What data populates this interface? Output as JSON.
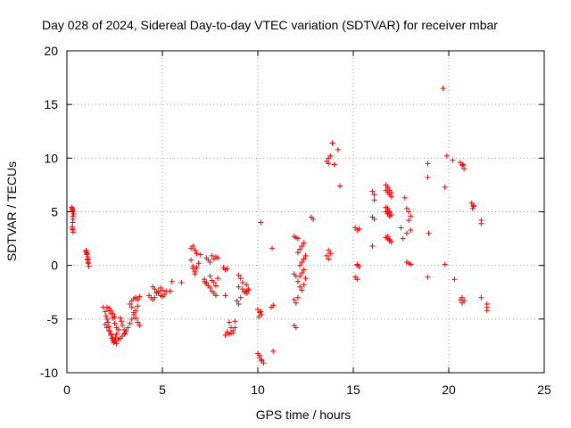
{
  "chart_data": {
    "type": "scatter",
    "title": "Day 028 of 2024, Sidereal Day-to-day VTEC variation (SDTVAR) for receiver mbar",
    "xlabel": "GPS time / hours",
    "ylabel": "SDTVAR / TECUs",
    "xlim": [
      0,
      25
    ],
    "ylim": [
      -10,
      20
    ],
    "xticks": [
      0,
      5,
      10,
      15,
      20,
      25
    ],
    "yticks": [
      -10,
      -5,
      0,
      5,
      10,
      15,
      20
    ],
    "xtick_labels": [
      "0",
      "5",
      "10",
      "15",
      "20",
      "25"
    ],
    "ytick_labels": [
      "-10",
      "-5",
      "0",
      "5",
      "10",
      "15",
      "20"
    ],
    "grid": true,
    "marker": "+",
    "series": [
      {
        "name": "SDTVAR",
        "color": "#ff0000",
        "x": [
          0.25,
          0.28,
          0.3,
          0.32,
          0.3,
          0.28,
          0.3,
          0.32,
          0.3,
          0.28,
          0.3,
          0.32,
          0.35,
          1.0,
          1.02,
          1.05,
          1.08,
          1.1,
          1.0,
          1.05,
          1.08,
          1.1,
          1.12,
          1.15,
          1.9,
          2.0,
          2.05,
          2.1,
          2.15,
          2.2,
          2.25,
          2.3,
          2.35,
          2.4,
          2.45,
          2.5,
          2.55,
          2.6,
          2.2,
          2.3,
          2.4,
          2.5,
          2.6,
          2.7,
          2.1,
          2.2,
          2.3,
          2.4,
          2.5,
          2.0,
          2.1,
          2.2,
          2.3,
          2.4,
          2.5,
          2.6,
          2.7,
          2.8,
          2.85,
          2.9,
          3.0,
          3.05,
          2.8,
          2.9,
          3.0,
          3.1,
          3.2,
          3.3,
          3.4,
          3.5,
          3.6,
          3.7,
          3.3,
          3.4,
          3.5,
          3.6,
          3.7,
          3.8,
          3.4,
          3.5,
          3.6,
          3.7,
          3.8,
          4.3,
          4.4,
          4.5,
          4.6,
          4.7,
          4.8,
          4.9,
          5.0,
          4.5,
          4.6,
          4.7,
          4.8,
          4.9,
          5.0,
          5.1,
          5.2,
          5.5,
          5.4,
          6.0,
          6.5,
          6.6,
          6.7,
          6.8,
          6.6,
          6.7,
          6.8,
          6.9,
          6.5,
          6.6,
          6.7,
          7.2,
          7.3,
          7.4,
          7.5,
          7.6,
          7.7,
          7.8,
          7.3,
          7.4,
          7.5,
          7.6,
          7.7,
          7.8,
          7.9,
          7.2,
          7.3,
          7.6,
          7.7,
          7.8,
          7.9,
          7.0,
          7.5,
          8.2,
          8.3,
          8.4,
          8.5,
          8.6,
          8.7,
          8.3,
          8.4,
          8.5,
          8.6,
          8.7,
          8.8,
          8.3,
          8.9,
          9.0,
          9.1,
          9.0,
          9.2,
          9.3,
          9.4,
          9.5,
          9.1,
          9.2,
          9.4,
          9.0,
          9.3,
          9.4,
          9.5,
          8.8,
          10.0,
          10.1,
          10.2,
          10.05,
          10.15,
          10.1,
          10.2,
          10.3,
          10.0,
          10.1,
          10.2,
          10.15,
          10.7,
          10.8,
          10.75,
          10.8,
          11.9,
          12.0,
          12.1,
          11.9,
          12.0,
          12.1,
          12.2,
          12.3,
          12.4,
          12.5,
          12.2,
          12.3,
          12.4,
          12.5,
          12.1,
          12.2,
          12.3,
          12.4,
          12.2,
          12.3,
          12.4,
          11.9,
          12.0,
          12.1,
          11.9,
          12.0,
          12.8,
          12.9,
          13.6,
          13.7,
          13.8,
          13.7,
          13.9,
          14.0,
          14.2,
          14.3,
          13.7,
          13.8,
          13.6,
          13.7,
          15.1,
          15.2,
          15.2,
          15.3,
          15.1,
          15.2,
          15.2,
          15.3,
          16.0,
          16.1,
          16.0,
          16.1,
          16.0,
          16.1,
          16.7,
          16.8,
          16.9,
          17.0,
          16.7,
          16.8,
          16.9,
          17.0,
          16.7,
          16.8,
          16.9,
          17.0,
          16.8,
          16.9,
          16.7,
          16.8,
          16.9,
          17.0,
          16.8,
          16.9,
          16.7,
          16.8,
          16.9,
          17.5,
          17.7,
          17.8,
          17.9,
          18.0,
          17.9,
          18.0,
          17.8,
          17.9,
          18.0,
          17.6,
          17.8,
          18.9,
          18.9,
          18.95,
          18.9,
          19.7,
          19.8,
          19.8,
          19.9,
          20.3,
          20.2,
          20.6,
          20.7,
          20.8,
          20.75,
          20.7,
          20.8,
          20.6,
          20.7,
          21.2,
          21.3,
          21.25,
          21.3,
          21.7,
          21.7,
          21.7,
          22.0,
          22.0,
          22.0
        ],
        "y": [
          5.4,
          5.2,
          4.6,
          4.3,
          4.0,
          3.6,
          3.3,
          3.1,
          3.4,
          5.3,
          5.0,
          5.1,
          4.8,
          1.4,
          1.2,
          1.0,
          0.6,
          0.3,
          1.3,
          1.1,
          0.8,
          0.5,
          0.2,
          -0.1,
          -3.9,
          -4.3,
          -4.7,
          -5.0,
          -5.3,
          -5.7,
          -6.1,
          -6.5,
          -6.8,
          -7.0,
          -7.2,
          -7.0,
          -6.7,
          -6.4,
          -4.2,
          -4.5,
          -4.9,
          -5.4,
          -5.8,
          -6.0,
          -3.9,
          -4.0,
          -4.2,
          -4.5,
          -4.8,
          -5.5,
          -5.8,
          -6.1,
          -6.4,
          -6.8,
          -7.1,
          -7.3,
          -6.9,
          -4.9,
          -5.2,
          -5.6,
          -6.0,
          -6.3,
          -6.8,
          -6.6,
          -6.4,
          -6.1,
          -5.8,
          -5.4,
          -5.0,
          -4.6,
          -4.2,
          -3.8,
          -3.6,
          -3.9,
          -4.4,
          -4.9,
          -5.3,
          -5.6,
          -3.3,
          -3.1,
          -3.0,
          -3.2,
          -2.9,
          -2.8,
          -3.0,
          -3.2,
          -3.0,
          -2.6,
          -2.4,
          -2.1,
          -2.3,
          -2.0,
          -2.2,
          -2.5,
          -2.6,
          -2.8,
          -2.9,
          -2.7,
          -2.4,
          -1.5,
          -2.4,
          -1.6,
          1.6,
          1.8,
          1.4,
          1.1,
          -0.3,
          -0.6,
          -0.2,
          0.2,
          0.5,
          -0.1,
          -0.8,
          -1.3,
          -1.6,
          -1.9,
          -2.1,
          -2.4,
          -2.6,
          -2.8,
          0.7,
          0.5,
          0.3,
          0.9,
          0.6,
          0.8,
          0.7,
          -1.5,
          -1.7,
          -1.4,
          -1.6,
          -1.9,
          -1.2,
          1.0,
          -1.0,
          -0.2,
          -0.4,
          -0.3,
          -5.3,
          -5.8,
          -6.3,
          -6.5,
          -6.2,
          -6.4,
          -6.3,
          -6.1,
          -5.8,
          -2.8,
          -3.3,
          -3.6,
          -3.0,
          -2.0,
          -2.2,
          -2.4,
          -2.6,
          -2.2,
          -1.2,
          -1.6,
          -1.8,
          -0.9,
          -2.5,
          -2.4,
          -2.3,
          -5.2,
          -4.1,
          -4.4,
          -4.6,
          -4.8,
          -4.3,
          -8.4,
          -8.8,
          -9.1,
          -8.2,
          -8.6,
          -8.9,
          4.0,
          -3.9,
          -3.7,
          1.6,
          -8.0,
          2.7,
          2.6,
          2.5,
          -0.8,
          -1.0,
          -1.5,
          -2.0,
          -2.3,
          -1.8,
          -1.2,
          0.0,
          0.3,
          0.6,
          0.9,
          1.2,
          1.5,
          1.8,
          2.1,
          -1.0,
          -0.7,
          -0.4,
          -3.2,
          -3.5,
          -3.0,
          -5.6,
          -5.8,
          4.5,
          4.3,
          9.7,
          10.0,
          10.2,
          9.5,
          11.4,
          9.4,
          10.8,
          7.4,
          1.4,
          1.1,
          0.9,
          0.6,
          3.5,
          3.3,
          0.1,
          -0.1,
          -1.1,
          -1.3,
          0.0,
          3.4,
          6.9,
          6.6,
          4.5,
          4.3,
          1.8,
          6.1,
          7.5,
          7.3,
          7.0,
          6.8,
          7.0,
          6.8,
          6.6,
          6.4,
          5.4,
          5.1,
          4.9,
          4.7,
          5.3,
          5.0,
          2.6,
          2.5,
          2.4,
          2.2,
          2.7,
          2.3,
          5.0,
          4.8,
          4.6,
          3.5,
          6.3,
          5.3,
          5.0,
          4.6,
          4.2,
          3.3,
          0.3,
          0.2,
          0.1,
          2.5,
          3.0,
          9.5,
          8.2,
          3.0,
          -1.1,
          16.5,
          7.3,
          0.1,
          10.2,
          -1.3,
          9.8,
          9.6,
          9.3,
          9.0,
          9.4,
          -3.0,
          -3.3,
          -3.2,
          -3.5,
          5.8,
          5.5,
          5.3,
          5.6,
          4.2,
          3.9,
          -3.0,
          -3.6,
          -3.9,
          -4.2
        ]
      }
    ]
  }
}
